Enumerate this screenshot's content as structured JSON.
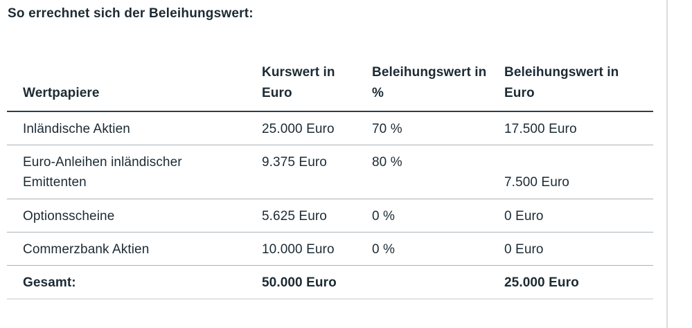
{
  "page": {
    "title": "So errechnet sich der Beleihungswert:"
  },
  "table": {
    "headers": {
      "wertpapiere": "Wertpapiere",
      "kurswert": "Kurswert in Euro",
      "beleihungswert_prozent": "Beleihungswert in %",
      "beleihungswert_euro": "Beleihungswert in Euro"
    },
    "rows": [
      {
        "wertpapier": "Inländische Aktien",
        "kurswert": "25.000 Euro",
        "beleihungswert_prozent": "70 %",
        "beleihungswert_euro": "17.500 Euro"
      },
      {
        "wertpapier": "Euro-Anleihen inländischer Emittenten",
        "kurswert": "9.375 Euro",
        "beleihungswert_prozent": "80 %",
        "beleihungswert_euro": "7.500 Euro"
      },
      {
        "wertpapier": "Optionsscheine",
        "kurswert": "5.625 Euro",
        "beleihungswert_prozent": "0 %",
        "beleihungswert_euro": "0 Euro"
      },
      {
        "wertpapier": "Commerzbank Aktien",
        "kurswert": "10.000 Euro",
        "beleihungswert_prozent": "0 %",
        "beleihungswert_euro": "0 Euro"
      }
    ],
    "total": {
      "label": "Gesamt:",
      "kurswert": "50.000 Euro",
      "beleihungswert_prozent": "",
      "beleihungswert_euro": "25.000 Euro"
    }
  },
  "colors": {
    "text": "#1c2a33",
    "rule-dark": "#2f3e47",
    "rule-mid": "#a9b3ba",
    "rule-light": "#dfe3e4",
    "rule-vertical": "#d9dbdc",
    "background": "#ffffff"
  }
}
